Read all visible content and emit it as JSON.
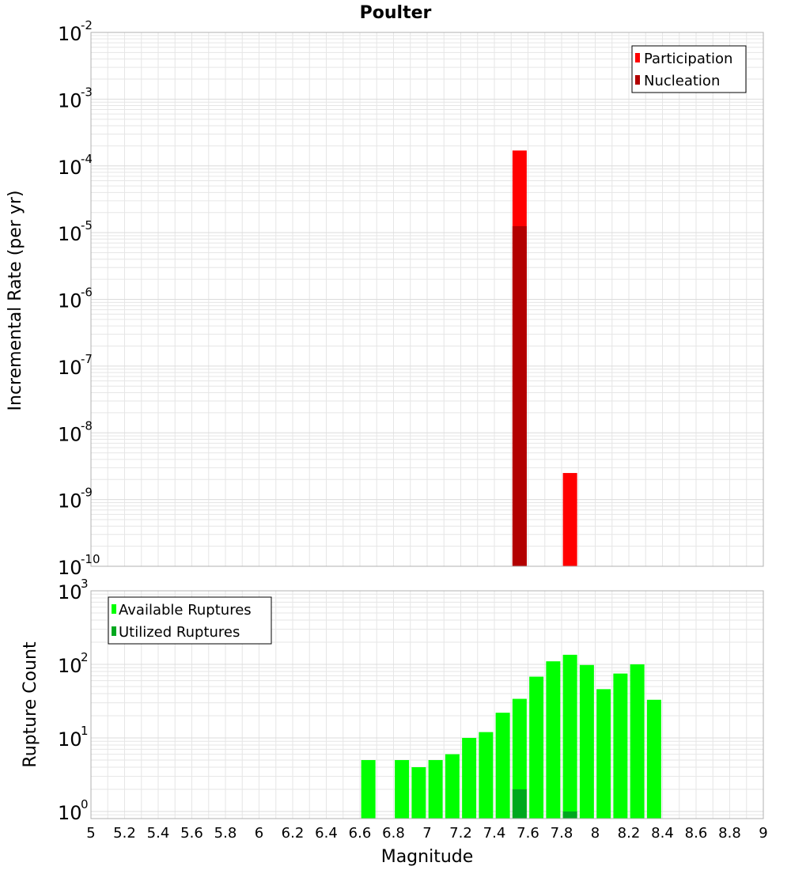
{
  "title": "Poulter",
  "xlabel": "Magnitude",
  "colors": {
    "participation": "#ff0000",
    "nucleation": "#b20000",
    "available": "#00ff00",
    "utilized": "#00a81e",
    "grid": "#e6e6e6",
    "frame": "#b0b0b0"
  },
  "chart_data": [
    {
      "type": "bar",
      "ylabel": "Incremental Rate (per yr)",
      "y_scale": "log",
      "ylim": [
        1e-10,
        0.01
      ],
      "xlim": [
        5,
        9
      ],
      "legend_position": "top-right",
      "y_tick_labels": [
        {
          "base": "10",
          "exp": "-10"
        },
        {
          "base": "10",
          "exp": "-9"
        },
        {
          "base": "10",
          "exp": "-8"
        },
        {
          "base": "10",
          "exp": "-7"
        },
        {
          "base": "10",
          "exp": "-6"
        },
        {
          "base": "10",
          "exp": "-5"
        },
        {
          "base": "10",
          "exp": "-4"
        },
        {
          "base": "10",
          "exp": "-3"
        },
        {
          "base": "10",
          "exp": "-2"
        }
      ],
      "series": [
        {
          "name": "Participation",
          "x": [
            7.55,
            7.85
          ],
          "values": [
            0.00017,
            2.5e-09
          ]
        },
        {
          "name": "Nucleation",
          "x": [
            7.55
          ],
          "values": [
            1.25e-05
          ]
        }
      ]
    },
    {
      "type": "bar",
      "ylabel": "Rupture Count",
      "y_scale": "log",
      "ylim": [
        0.8,
        1000
      ],
      "xlim": [
        5,
        9
      ],
      "legend_position": "top-left",
      "y_tick_labels": [
        {
          "base": "10",
          "exp": "0"
        },
        {
          "base": "10",
          "exp": "1"
        },
        {
          "base": "10",
          "exp": "2"
        },
        {
          "base": "10",
          "exp": "3"
        }
      ],
      "x_tick_labels": [
        "5",
        "5.2",
        "5.4",
        "5.6",
        "5.8",
        "6",
        "6.2",
        "6.4",
        "6.6",
        "6.8",
        "7",
        "7.2",
        "7.4",
        "7.6",
        "7.8",
        "8",
        "8.2",
        "8.4",
        "8.6",
        "8.8",
        "9"
      ],
      "series": [
        {
          "name": "Available Ruptures",
          "x": [
            6.65,
            6.85,
            6.95,
            7.05,
            7.15,
            7.25,
            7.35,
            7.45,
            7.55,
            7.65,
            7.75,
            7.85,
            7.95,
            8.05,
            8.15,
            8.25,
            8.35
          ],
          "values": [
            5,
            5,
            4,
            5,
            6,
            10,
            12,
            22,
            34,
            68,
            110,
            135,
            98,
            46,
            75,
            100,
            33
          ]
        },
        {
          "name": "Utilized Ruptures",
          "x": [
            7.55,
            7.85
          ],
          "values": [
            2,
            1
          ]
        }
      ]
    }
  ]
}
